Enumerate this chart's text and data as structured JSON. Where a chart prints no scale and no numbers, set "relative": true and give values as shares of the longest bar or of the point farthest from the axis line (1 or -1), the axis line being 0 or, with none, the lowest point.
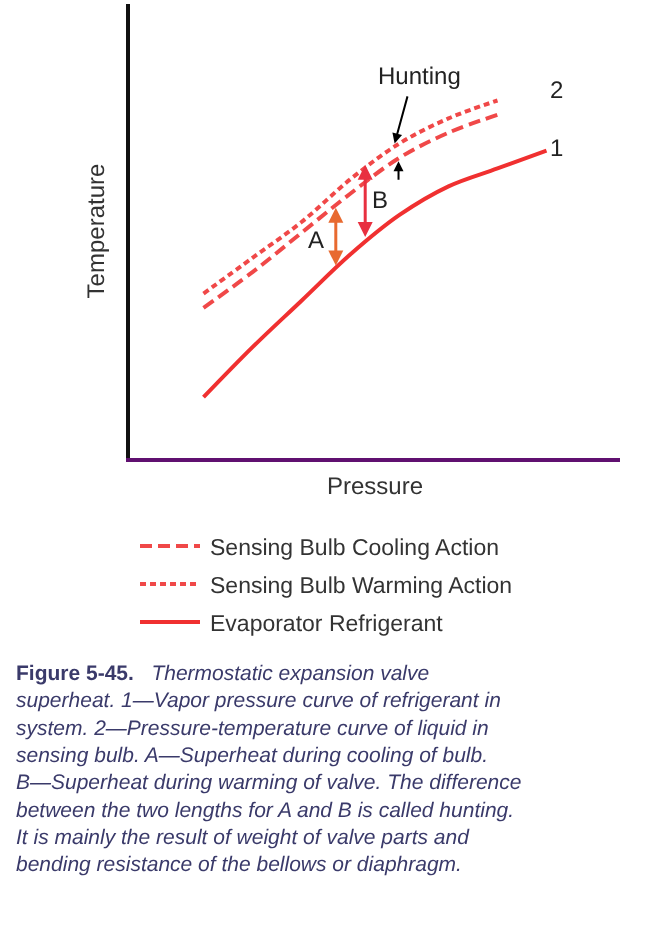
{
  "chart_data": {
    "type": "line",
    "relative": true,
    "xlabel": "Pressure",
    "ylabel": "Temperature",
    "categories": [
      null,
      null,
      null,
      null,
      null,
      null,
      null,
      null,
      null,
      null
    ],
    "series": [
      {
        "name": "Sensing Bulb Cooling Action",
        "color": "#f04848",
        "line_style": "dashed",
        "values": [
          null,
          0.42,
          0.52,
          0.63,
          0.74,
          0.84,
          0.91,
          0.96,
          null,
          null
        ]
      },
      {
        "name": "Sensing Bulb Warming Action",
        "color": "#f04848",
        "line_style": "dotted",
        "values": [
          null,
          0.46,
          0.56,
          0.66,
          0.78,
          0.88,
          0.95,
          1,
          null,
          null
        ]
      },
      {
        "name": "Evaporator Refrigerant",
        "color": "#f03030",
        "line_style": "solid",
        "values": [
          null,
          0.17,
          0.31,
          0.44,
          0.57,
          0.68,
          0.76,
          0.81,
          0.86,
          null
        ]
      }
    ],
    "annotations": [
      "A",
      "B",
      "Hunting",
      "1",
      "2",
      "Figure 5-45.",
      "Thermostatic expansion valve superheat. 1—Vapor pressure curve of refrigerant in system. 2—Pressure-temperature curve of liquid in sensing bulb. A—Superheat during cooling of bulb. B—Superheat during warming of valve. The difference between the two lengths for A and B is called hunting. It is mainly the result of weight of valve parts and bending resistance of the bellows or diaphragm."
    ],
    "legend": "bottom"
  }
}
